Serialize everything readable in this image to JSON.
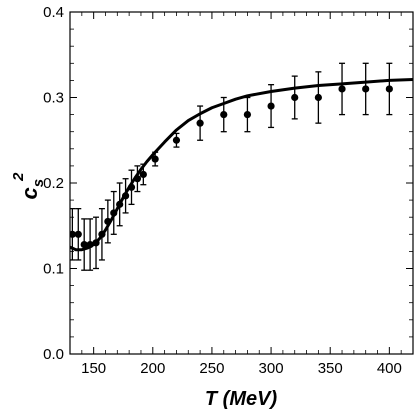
{
  "chart_data": {
    "type": "scatter",
    "title": "",
    "xlabel": "T (MeV)",
    "ylabel": "c_s^2",
    "ylabel_base": "c",
    "ylabel_sub": "s",
    "ylabel_sup": "2",
    "xlim": [
      130,
      420
    ],
    "ylim": [
      0.0,
      0.4
    ],
    "xticks": [
      150,
      200,
      250,
      300,
      350,
      400
    ],
    "yticks": [
      0.0,
      0.1,
      0.2,
      0.3,
      0.4
    ],
    "xtick_labels": [
      "150",
      "200",
      "250",
      "300",
      "350",
      "400"
    ],
    "ytick_labels": [
      "0.0",
      "0.1",
      "0.2",
      "0.3",
      "0.4"
    ],
    "grid": false,
    "legend": "none",
    "series": [
      {
        "type": "scatter_errorbar",
        "color": "#000000",
        "points": [
          {
            "x": 132,
            "y": 0.14,
            "err": 0.03
          },
          {
            "x": 137,
            "y": 0.14,
            "err": 0.03
          },
          {
            "x": 142,
            "y": 0.128,
            "err": 0.03
          },
          {
            "x": 147,
            "y": 0.128,
            "err": 0.03
          },
          {
            "x": 152,
            "y": 0.13,
            "err": 0.03
          },
          {
            "x": 157,
            "y": 0.14,
            "err": 0.03
          },
          {
            "x": 162,
            "y": 0.155,
            "err": 0.025
          },
          {
            "x": 167,
            "y": 0.165,
            "err": 0.025
          },
          {
            "x": 172,
            "y": 0.175,
            "err": 0.025
          },
          {
            "x": 177,
            "y": 0.185,
            "err": 0.02
          },
          {
            "x": 182,
            "y": 0.195,
            "err": 0.02
          },
          {
            "x": 187,
            "y": 0.205,
            "err": 0.015
          },
          {
            "x": 192,
            "y": 0.21,
            "err": 0.012
          },
          {
            "x": 202,
            "y": 0.228,
            "err": 0.008
          },
          {
            "x": 220,
            "y": 0.25,
            "err": 0.008
          },
          {
            "x": 240,
            "y": 0.27,
            "err": 0.02
          },
          {
            "x": 260,
            "y": 0.28,
            "err": 0.02
          },
          {
            "x": 280,
            "y": 0.28,
            "err": 0.02
          },
          {
            "x": 300,
            "y": 0.29,
            "err": 0.025
          },
          {
            "x": 320,
            "y": 0.3,
            "err": 0.025
          },
          {
            "x": 340,
            "y": 0.3,
            "err": 0.03
          },
          {
            "x": 360,
            "y": 0.31,
            "err": 0.03
          },
          {
            "x": 380,
            "y": 0.31,
            "err": 0.03
          },
          {
            "x": 400,
            "y": 0.31,
            "err": 0.03
          }
        ]
      },
      {
        "type": "line",
        "color": "#000000",
        "x": [
          130,
          135,
          140,
          145,
          150,
          155,
          160,
          165,
          170,
          175,
          180,
          185,
          190,
          195,
          200,
          210,
          220,
          230,
          240,
          250,
          260,
          270,
          280,
          300,
          320,
          340,
          360,
          380,
          400,
          420
        ],
        "y": [
          0.125,
          0.122,
          0.122,
          0.124,
          0.128,
          0.135,
          0.145,
          0.157,
          0.17,
          0.183,
          0.195,
          0.206,
          0.216,
          0.225,
          0.233,
          0.248,
          0.262,
          0.273,
          0.281,
          0.288,
          0.293,
          0.298,
          0.302,
          0.307,
          0.311,
          0.314,
          0.316,
          0.318,
          0.32,
          0.321
        ]
      }
    ]
  }
}
